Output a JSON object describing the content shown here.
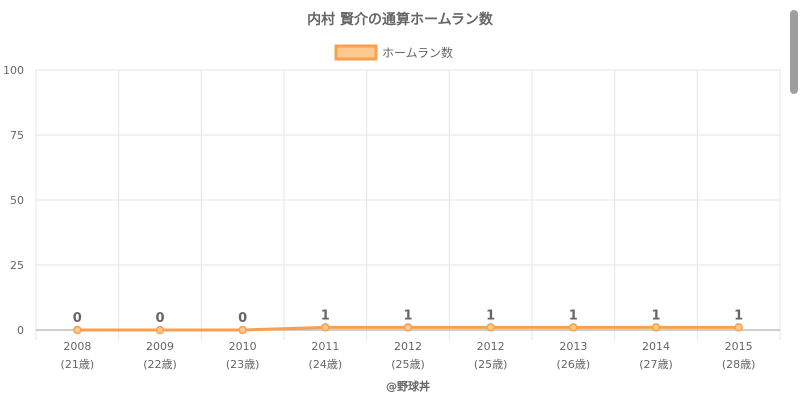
{
  "chart_data": {
    "type": "line",
    "title": "内村 賢介の通算ホームラン数",
    "categories": [
      "2008",
      "2009",
      "2010",
      "2011",
      "2012",
      "2012",
      "2013",
      "2014",
      "2015"
    ],
    "sub_categories": [
      "(21歳)",
      "(22歳)",
      "(23歳)",
      "(24歳)",
      "(25歳)",
      "(25歳)",
      "(26歳)",
      "(27歳)",
      "(28歳)"
    ],
    "series": [
      {
        "name": "ホームラン数",
        "values": [
          0,
          0,
          0,
          1,
          1,
          1,
          1,
          1,
          1
        ]
      }
    ],
    "ylim": [
      0,
      100
    ],
    "yticks": [
      0,
      25,
      50,
      75,
      100
    ],
    "grid": true,
    "legend_position": "top-center",
    "colors": {
      "line": "#f7a04f",
      "fill": "#fcc98f",
      "grid": "#e6e6e6",
      "text": "#666666"
    }
  },
  "footer": "@野球丼"
}
